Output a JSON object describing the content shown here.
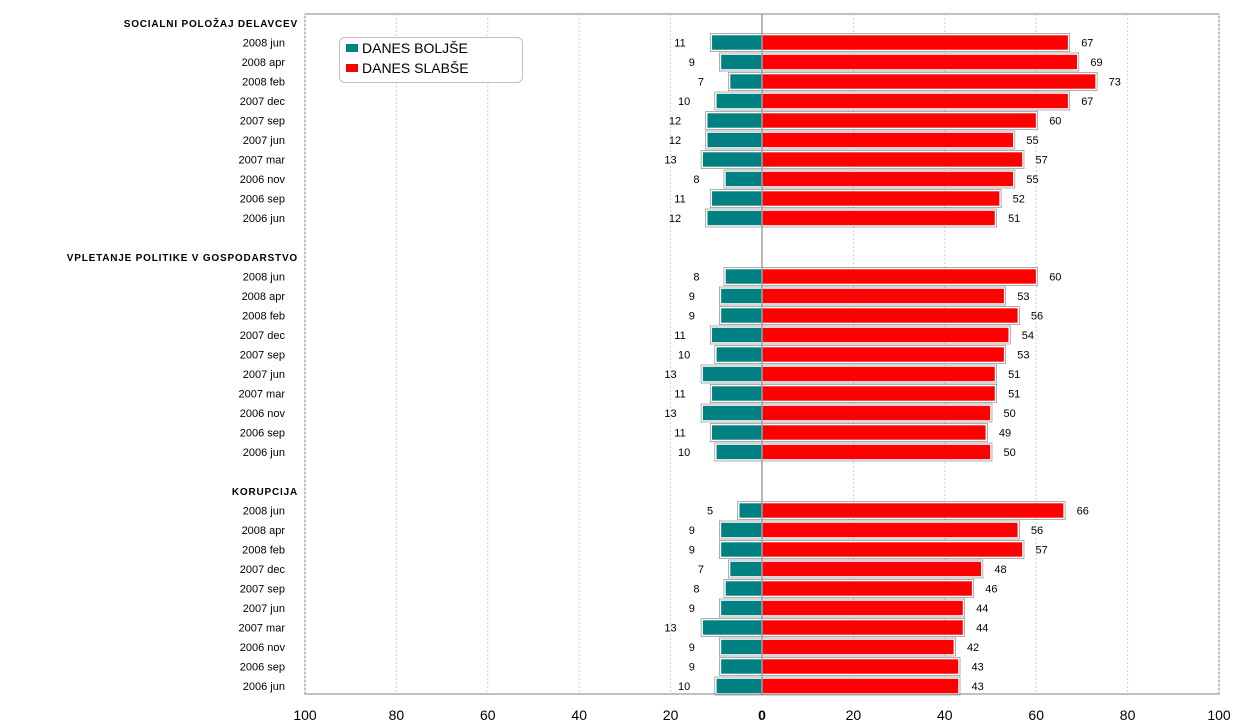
{
  "chart_data": {
    "type": "bar",
    "orientation": "horizontal-diverging",
    "series": [
      {
        "name": "DANES BOLJŠE",
        "color": "#008080"
      },
      {
        "name": "DANES SLABŠE",
        "color": "#ff0000"
      }
    ],
    "xlim": [
      -100,
      100
    ],
    "x_ticks": [
      "100",
      "80",
      "60",
      "40",
      "20",
      "0",
      "20",
      "40",
      "60",
      "80",
      "100"
    ],
    "grid": "vertical",
    "legend_position": "top-left",
    "groups": [
      {
        "title": "SOCIALNI POLOŽAJ DELAVCEV",
        "rows": [
          {
            "label": "2008 jun",
            "boljse": 11,
            "slabse": 67
          },
          {
            "label": "2008 apr",
            "boljse": 9,
            "slabse": 69
          },
          {
            "label": "2008 feb",
            "boljse": 7,
            "slabse": 73
          },
          {
            "label": "2007 dec",
            "boljse": 10,
            "slabse": 67
          },
          {
            "label": "2007 sep",
            "boljse": 12,
            "slabse": 60
          },
          {
            "label": "2007 jun",
            "boljse": 12,
            "slabse": 55
          },
          {
            "label": "2007 mar",
            "boljse": 13,
            "slabse": 57
          },
          {
            "label": "2006 nov",
            "boljse": 8,
            "slabse": 55
          },
          {
            "label": "2006 sep",
            "boljse": 11,
            "slabse": 52
          },
          {
            "label": "2006 jun",
            "boljse": 12,
            "slabse": 51
          }
        ]
      },
      {
        "title": "VPLETANJE POLITIKE V GOSPODARSTVO",
        "rows": [
          {
            "label": "2008 jun",
            "boljse": 8,
            "slabse": 60
          },
          {
            "label": "2008 apr",
            "boljse": 9,
            "slabse": 53
          },
          {
            "label": "2008 feb",
            "boljse": 9,
            "slabse": 56
          },
          {
            "label": "2007 dec",
            "boljse": 11,
            "slabse": 54
          },
          {
            "label": "2007 sep",
            "boljse": 10,
            "slabse": 53
          },
          {
            "label": "2007 jun",
            "boljse": 13,
            "slabse": 51
          },
          {
            "label": "2007 mar",
            "boljse": 11,
            "slabse": 51
          },
          {
            "label": "2006 nov",
            "boljse": 13,
            "slabse": 50
          },
          {
            "label": "2006 sep",
            "boljse": 11,
            "slabse": 49
          },
          {
            "label": "2006 jun",
            "boljse": 10,
            "slabse": 50
          }
        ]
      },
      {
        "title": "KORUPCIJA",
        "rows": [
          {
            "label": "2008 jun",
            "boljse": 5,
            "slabse": 66
          },
          {
            "label": "2008 apr",
            "boljse": 9,
            "slabse": 56
          },
          {
            "label": "2008 feb",
            "boljse": 9,
            "slabse": 57
          },
          {
            "label": "2007 dec",
            "boljse": 7,
            "slabse": 48
          },
          {
            "label": "2007 sep",
            "boljse": 8,
            "slabse": 46
          },
          {
            "label": "2007 jun",
            "boljse": 9,
            "slabse": 44
          },
          {
            "label": "2007 mar",
            "boljse": 13,
            "slabse": 44
          },
          {
            "label": "2006 nov",
            "boljse": 9,
            "slabse": 42
          },
          {
            "label": "2006 sep",
            "boljse": 9,
            "slabse": 43
          },
          {
            "label": "2006 jun",
            "boljse": 10,
            "slabse": 43
          }
        ]
      }
    ]
  }
}
